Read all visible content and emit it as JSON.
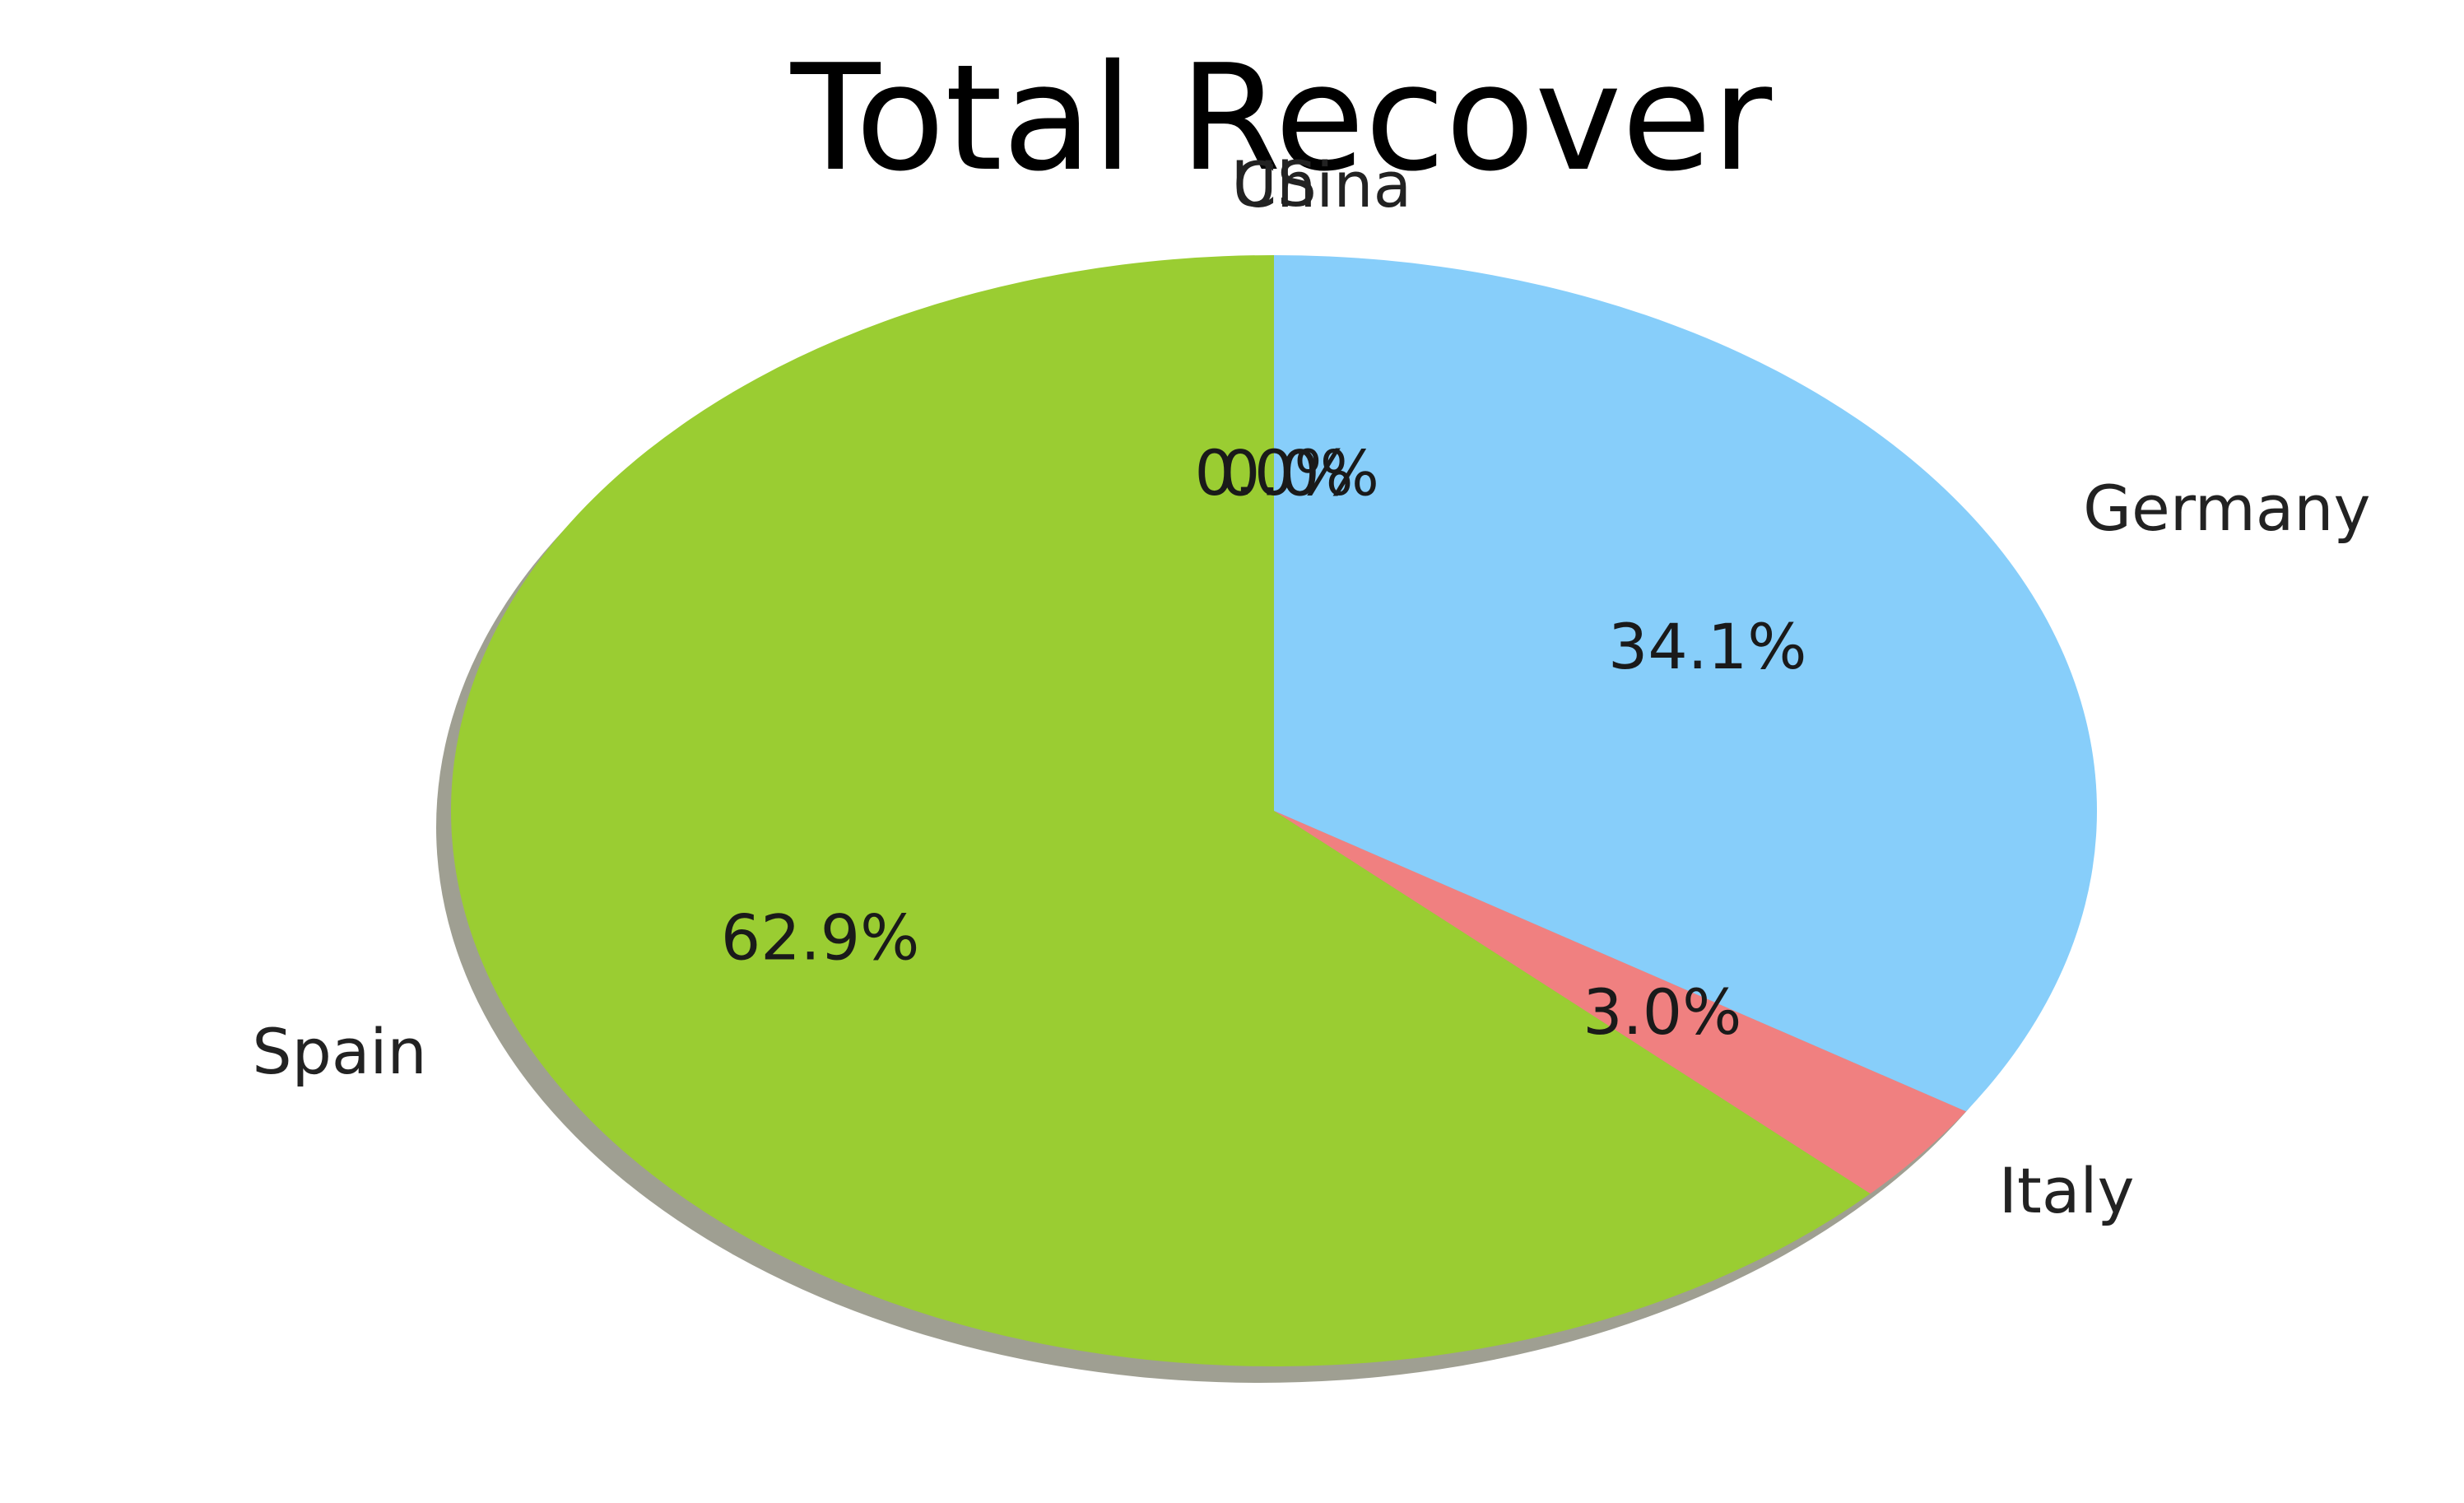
{
  "chart_data": {
    "type": "pie",
    "title": "Total Recover",
    "shadow": true,
    "start_angle_deg": 90,
    "direction": "counterclockwise",
    "slices": [
      {
        "label": "US",
        "value": 0.0,
        "pct_label": "0.0%",
        "color": "#6B8E23"
      },
      {
        "label": "China",
        "value": 0.0,
        "pct_label": "0.0%",
        "color": "#FFD700"
      },
      {
        "label": "Spain",
        "value": 62.9,
        "pct_label": "62.9%",
        "color": "#9ACD32"
      },
      {
        "label": "Italy",
        "value": 3.0,
        "pct_label": "3.0%",
        "color": "#F08080"
      },
      {
        "label": "Germany",
        "value": 34.1,
        "pct_label": "34.1%",
        "color": "#87CEFA"
      }
    ]
  }
}
